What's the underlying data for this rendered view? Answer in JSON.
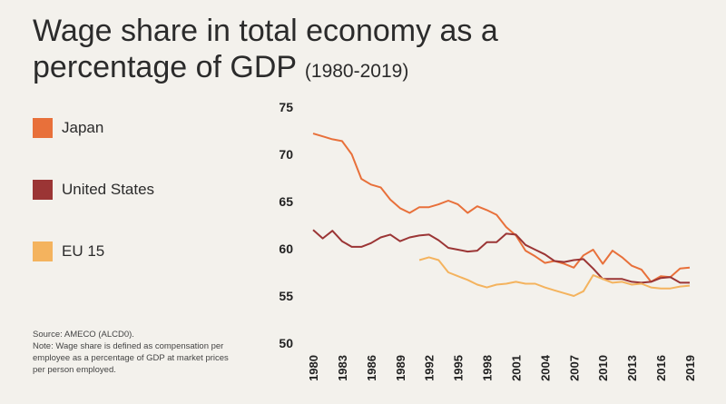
{
  "header": {
    "title_line1": "Wage share in total economy as a",
    "title_line2": "percentage of GDP",
    "title_range": "(1980-2019)"
  },
  "legend": [
    {
      "label": "Japan",
      "color": "#e8703a"
    },
    {
      "label": "United States",
      "color": "#9b3535"
    },
    {
      "label": "EU 15",
      "color": "#f4b35e"
    }
  ],
  "source": {
    "line1": "Source: AMECO (ALCD0).",
    "line2": "Note: Wage share is defined as compensation per employee as a percentage of GDP at market prices per person employed."
  },
  "chart_data": {
    "type": "line",
    "title": "Wage share in total economy as a percentage of GDP (1980-2019)",
    "ylim": [
      50,
      75
    ],
    "y_ticks": [
      50,
      55,
      60,
      65,
      70,
      75
    ],
    "x_tick_labels": [
      "1980",
      "1983",
      "1986",
      "1989",
      "1992",
      "1995",
      "1998",
      "2001",
      "2004",
      "2007",
      "2010",
      "2013",
      "2016",
      "2019"
    ],
    "xlim": [
      1980,
      2019
    ],
    "grid": false,
    "legend_position": "left",
    "series": [
      {
        "name": "Japan",
        "color": "#e8703a",
        "x": [
          1980,
          1981,
          1982,
          1983,
          1984,
          1985,
          1986,
          1987,
          1988,
          1989,
          1990,
          1991,
          1992,
          1993,
          1994,
          1995,
          1996,
          1997,
          1998,
          1999,
          2000,
          2001,
          2002,
          2003,
          2004,
          2005,
          2006,
          2007,
          2008,
          2009,
          2010,
          2011,
          2012,
          2013,
          2014,
          2015,
          2016,
          2017,
          2018,
          2019
        ],
        "values": [
          72.2,
          71.9,
          71.6,
          71.4,
          70.0,
          67.4,
          66.8,
          66.5,
          65.2,
          64.3,
          63.8,
          64.4,
          64.4,
          64.7,
          65.1,
          64.7,
          63.8,
          64.5,
          64.1,
          63.6,
          62.3,
          61.4,
          59.8,
          59.2,
          58.5,
          58.7,
          58.4,
          58.0,
          59.3,
          59.9,
          58.4,
          59.8,
          59.1,
          58.2,
          57.8,
          56.5,
          57.1,
          57.0,
          57.9,
          58.0
        ]
      },
      {
        "name": "United States",
        "color": "#9b3535",
        "x": [
          1980,
          1981,
          1982,
          1983,
          1984,
          1985,
          1986,
          1987,
          1988,
          1989,
          1990,
          1991,
          1992,
          1993,
          1994,
          1995,
          1996,
          1997,
          1998,
          1999,
          2000,
          2001,
          2002,
          2003,
          2004,
          2005,
          2006,
          2007,
          2008,
          2009,
          2010,
          2011,
          2012,
          2013,
          2014,
          2015,
          2016,
          2017,
          2018,
          2019
        ],
        "values": [
          62.0,
          61.1,
          61.9,
          60.8,
          60.2,
          60.2,
          60.6,
          61.2,
          61.5,
          60.8,
          61.2,
          61.4,
          61.5,
          60.9,
          60.1,
          59.9,
          59.7,
          59.8,
          60.7,
          60.7,
          61.6,
          61.5,
          60.4,
          59.9,
          59.4,
          58.7,
          58.6,
          58.8,
          58.9,
          57.9,
          56.8,
          56.8,
          56.8,
          56.5,
          56.4,
          56.5,
          56.9,
          57.0,
          56.4,
          56.4
        ]
      },
      {
        "name": "EU 15",
        "color": "#f4b35e",
        "x": [
          1991,
          1992,
          1993,
          1994,
          1995,
          1996,
          1997,
          1998,
          1999,
          2000,
          2001,
          2002,
          2003,
          2004,
          2005,
          2006,
          2007,
          2008,
          2009,
          2010,
          2011,
          2012,
          2013,
          2014,
          2015,
          2016,
          2017,
          2018,
          2019
        ],
        "values": [
          58.8,
          59.1,
          58.8,
          57.5,
          57.1,
          56.7,
          56.2,
          55.9,
          56.2,
          56.3,
          56.5,
          56.3,
          56.3,
          55.9,
          55.6,
          55.3,
          55.0,
          55.5,
          57.2,
          56.8,
          56.4,
          56.5,
          56.2,
          56.3,
          55.9,
          55.8,
          55.8,
          56.0,
          56.1
        ]
      }
    ]
  }
}
